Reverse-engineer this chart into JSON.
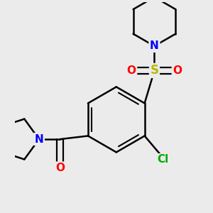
{
  "background_color": "#ebebeb",
  "bond_color": "#000000",
  "N_color": "#0000ff",
  "O_color": "#ff0000",
  "S_color": "#b8b800",
  "Cl_color": "#00aa00",
  "line_width": 1.8,
  "figsize": [
    3.0,
    3.0
  ],
  "dpi": 100,
  "xlim": [
    -2.8,
    2.8
  ],
  "ylim": [
    -3.2,
    3.2
  ]
}
